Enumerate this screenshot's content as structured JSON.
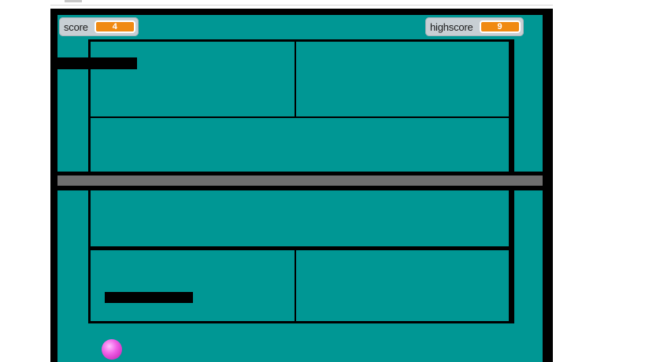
{
  "score": {
    "label": "score",
    "value": "4"
  },
  "highscore": {
    "label": "highscore",
    "value": "9"
  },
  "colors": {
    "field": "#009794",
    "wall": "#000000",
    "divider": "#6e6e6e",
    "monitor_bg": "#c8cfd4",
    "monitor_value": "#f08a12",
    "ball": "#e04ed6"
  }
}
